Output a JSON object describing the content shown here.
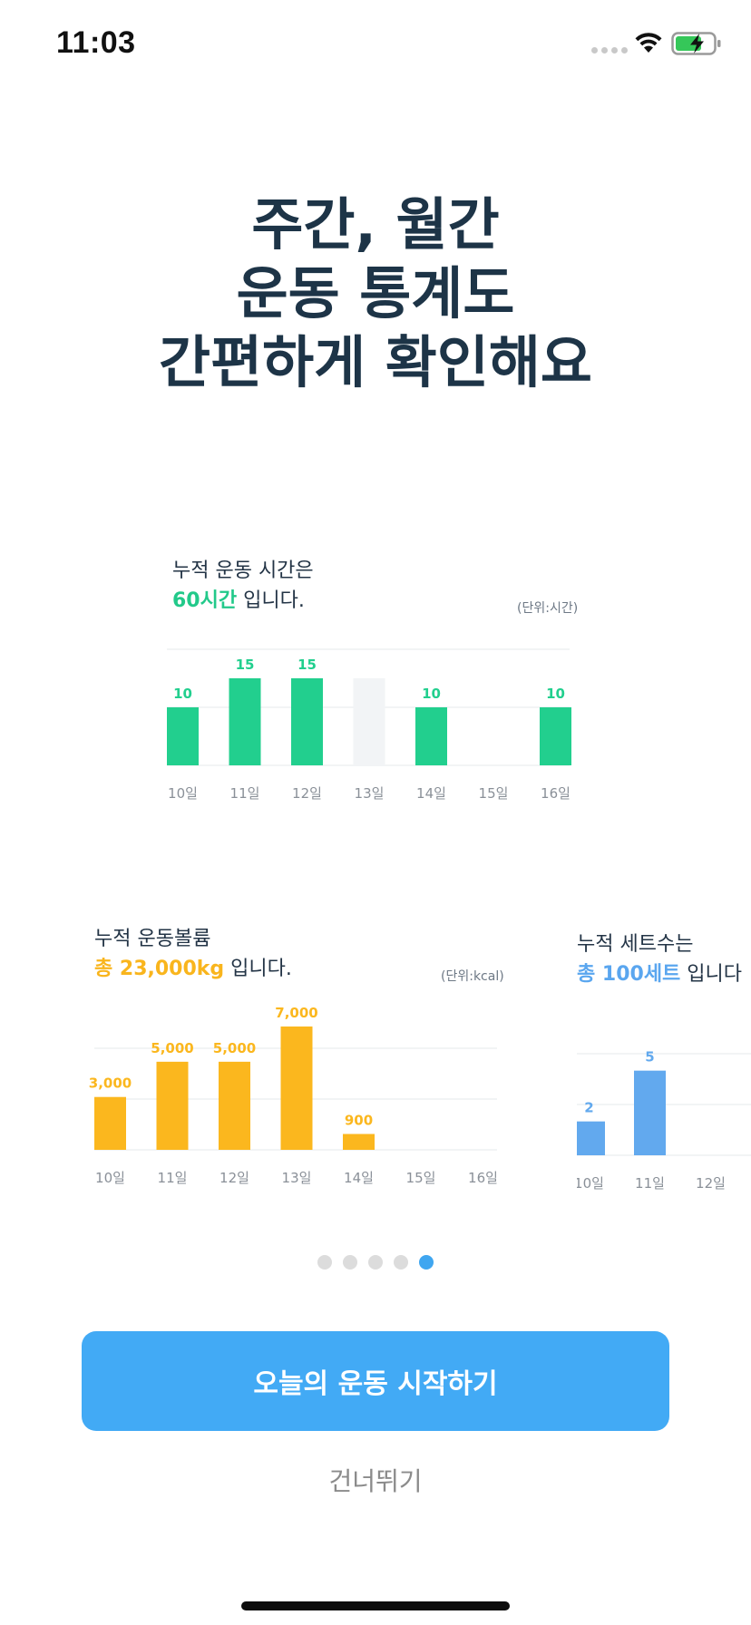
{
  "status_bar": {
    "time": "11:03"
  },
  "headline": {
    "line1": "주간, 월간",
    "line2": "운동 통계도",
    "line3": "간편하게 확인해요"
  },
  "cards": {
    "time": {
      "title": "누적 운동 시간은",
      "highlight": "60시간",
      "suffix": " 입니다.",
      "unit": "(단위:시간)",
      "accent": "#22cf8e"
    },
    "volume": {
      "title": "누적 운동볼륨",
      "highlight": "총 23,000kg",
      "suffix": " 입니다.",
      "unit": "(단위:kcal)",
      "accent": "#fbb71e"
    },
    "sets": {
      "title": "누적 세트수는",
      "highlight": "총 100세트",
      "suffix": " 입니다",
      "accent": "#62a9ee"
    }
  },
  "chart_data": [
    {
      "type": "bar",
      "categories": [
        "10일",
        "11일",
        "12일",
        "13일",
        "14일",
        "15일",
        "16일"
      ],
      "values": [
        10,
        15,
        15,
        null,
        10,
        null,
        10
      ],
      "data_labels": [
        "10",
        "15",
        "15",
        "",
        "10",
        "",
        "10"
      ],
      "placeholder_categories": [
        "13일"
      ],
      "ylim": [
        0,
        20
      ],
      "grid": true,
      "color": "#22cf8e",
      "placeholder_color": "#f2f4f6"
    },
    {
      "type": "bar",
      "categories": [
        "10일",
        "11일",
        "12일",
        "13일",
        "14일",
        "15일",
        "16일"
      ],
      "values": [
        3000,
        5000,
        5000,
        7000,
        900,
        null,
        null
      ],
      "data_labels": [
        "3,000",
        "5,000",
        "5,000",
        "7,000",
        "900",
        "",
        ""
      ],
      "ylim": [
        0,
        7000
      ],
      "grid": true,
      "color": "#fbb71e"
    },
    {
      "type": "bar",
      "categories": [
        "10일",
        "11일",
        "12일"
      ],
      "values": [
        2,
        5,
        null
      ],
      "data_labels": [
        "2",
        "5",
        ""
      ],
      "ylim": [
        0,
        6
      ],
      "grid": true,
      "color": "#62a9ee"
    }
  ],
  "pager": {
    "count": 5,
    "active_index": 4,
    "active_color": "#3fa6f0",
    "inactive_color": "#dcdcdc"
  },
  "actions": {
    "start_label": "오늘의 운동 시작하기",
    "skip_label": "건너뛰기"
  }
}
